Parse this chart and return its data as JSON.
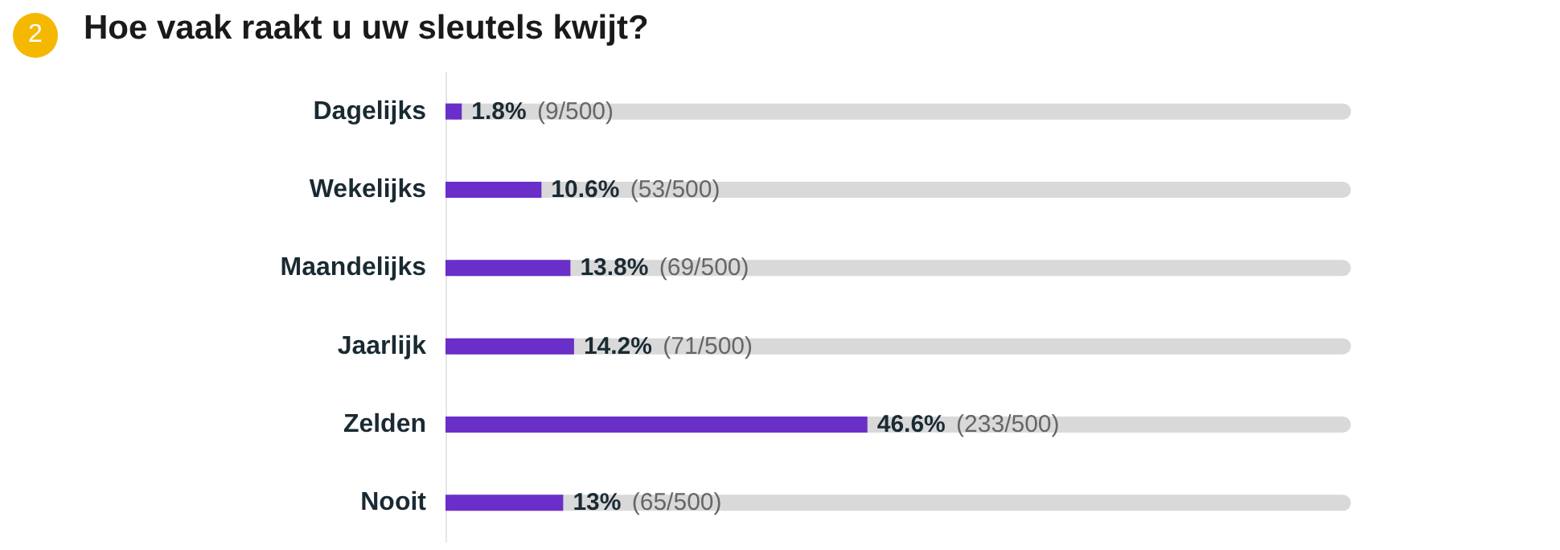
{
  "chart_data": {
    "type": "bar",
    "orientation": "horizontal",
    "title": "Hoe vaak raakt u uw sleutels kwijt?",
    "annotations": [
      "2"
    ],
    "categories": [
      "Dagelijks",
      "Wekelijks",
      "Maandelijks",
      "Jaarlijk",
      "Zelden",
      "Nooit"
    ],
    "values": [
      1.8,
      10.6,
      13.8,
      14.2,
      46.6,
      13
    ],
    "value_labels": [
      "1.8% (9/500)",
      "10.6% (53/500)",
      "13.8% (69/500)",
      "14.2% (71/500)",
      "46.6% (233/500)",
      "13% (65/500)"
    ],
    "color": "#6a2fc8",
    "xlim": [
      0,
      100
    ],
    "tick_labels": "y"
  }
}
